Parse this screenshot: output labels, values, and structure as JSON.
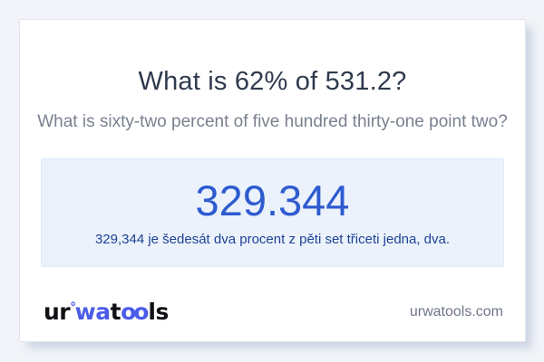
{
  "colors": {
    "page_background": "#f2f4f9",
    "card_background": "#ffffff",
    "title_text": "#2f3a4d",
    "subtitle_text": "#79818f",
    "result_box_background": "#ebf2fb",
    "result_value_blue": "#2e5bd0",
    "result_sentence_blue": "#1e4296",
    "logo_accent_blue": "#4a5ce8",
    "logo_black": "#101115"
  },
  "question": {
    "title": "What is 62% of 531.2?",
    "subtitle": "What is sixty-two percent of five hundred thirty-one point two?"
  },
  "result": {
    "value": "329.344",
    "sentence": "329,344 je šedesát dva procent z pěti set třiceti jedna, dva."
  },
  "footer": {
    "logo": {
      "seg1": "ur",
      "degree": "°",
      "seg2": "wa",
      "seg3": "t",
      "seg4": "oo",
      "seg5": "ls"
    },
    "website": "urwatools.com"
  }
}
